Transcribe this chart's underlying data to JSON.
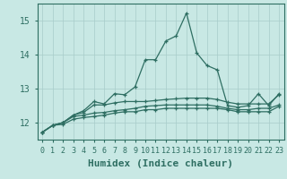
{
  "x": [
    0,
    1,
    2,
    3,
    4,
    5,
    6,
    7,
    8,
    9,
    10,
    11,
    12,
    13,
    14,
    15,
    16,
    17,
    18,
    19,
    20,
    21,
    22,
    23
  ],
  "line1": [
    11.72,
    11.92,
    12.0,
    12.22,
    12.35,
    12.62,
    12.55,
    12.85,
    12.82,
    13.05,
    13.85,
    13.85,
    14.4,
    14.55,
    15.22,
    14.05,
    13.68,
    13.55,
    12.5,
    12.45,
    12.5,
    12.85,
    12.5,
    12.85
  ],
  "line2": [
    11.72,
    11.92,
    12.0,
    12.22,
    12.3,
    12.52,
    12.52,
    12.58,
    12.62,
    12.62,
    12.62,
    12.65,
    12.68,
    12.7,
    12.72,
    12.72,
    12.72,
    12.68,
    12.6,
    12.55,
    12.55,
    12.55,
    12.55,
    12.82
  ],
  "line3": [
    11.72,
    11.92,
    12.0,
    12.18,
    12.22,
    12.28,
    12.3,
    12.35,
    12.38,
    12.42,
    12.48,
    12.5,
    12.52,
    12.52,
    12.52,
    12.52,
    12.52,
    12.48,
    12.42,
    12.38,
    12.38,
    12.42,
    12.42,
    12.52
  ],
  "line4": [
    11.72,
    11.92,
    11.95,
    12.1,
    12.15,
    12.18,
    12.22,
    12.28,
    12.32,
    12.32,
    12.38,
    12.38,
    12.42,
    12.42,
    12.42,
    12.42,
    12.42,
    12.42,
    12.38,
    12.32,
    12.32,
    12.32,
    12.32,
    12.48
  ],
  "color": "#2E6E62",
  "bg_color": "#C8E8E4",
  "grid_color": "#A8CCCA",
  "xlabel": "Humidex (Indice chaleur)",
  "ylim": [
    11.5,
    15.5
  ],
  "xlim": [
    -0.5,
    23.5
  ],
  "yticks": [
    12,
    13,
    14,
    15
  ],
  "xticks": [
    0,
    1,
    2,
    3,
    4,
    5,
    6,
    7,
    8,
    9,
    10,
    11,
    12,
    13,
    14,
    15,
    16,
    17,
    18,
    19,
    20,
    21,
    22,
    23
  ],
  "fontsize": 7,
  "xlabel_fontsize": 8
}
